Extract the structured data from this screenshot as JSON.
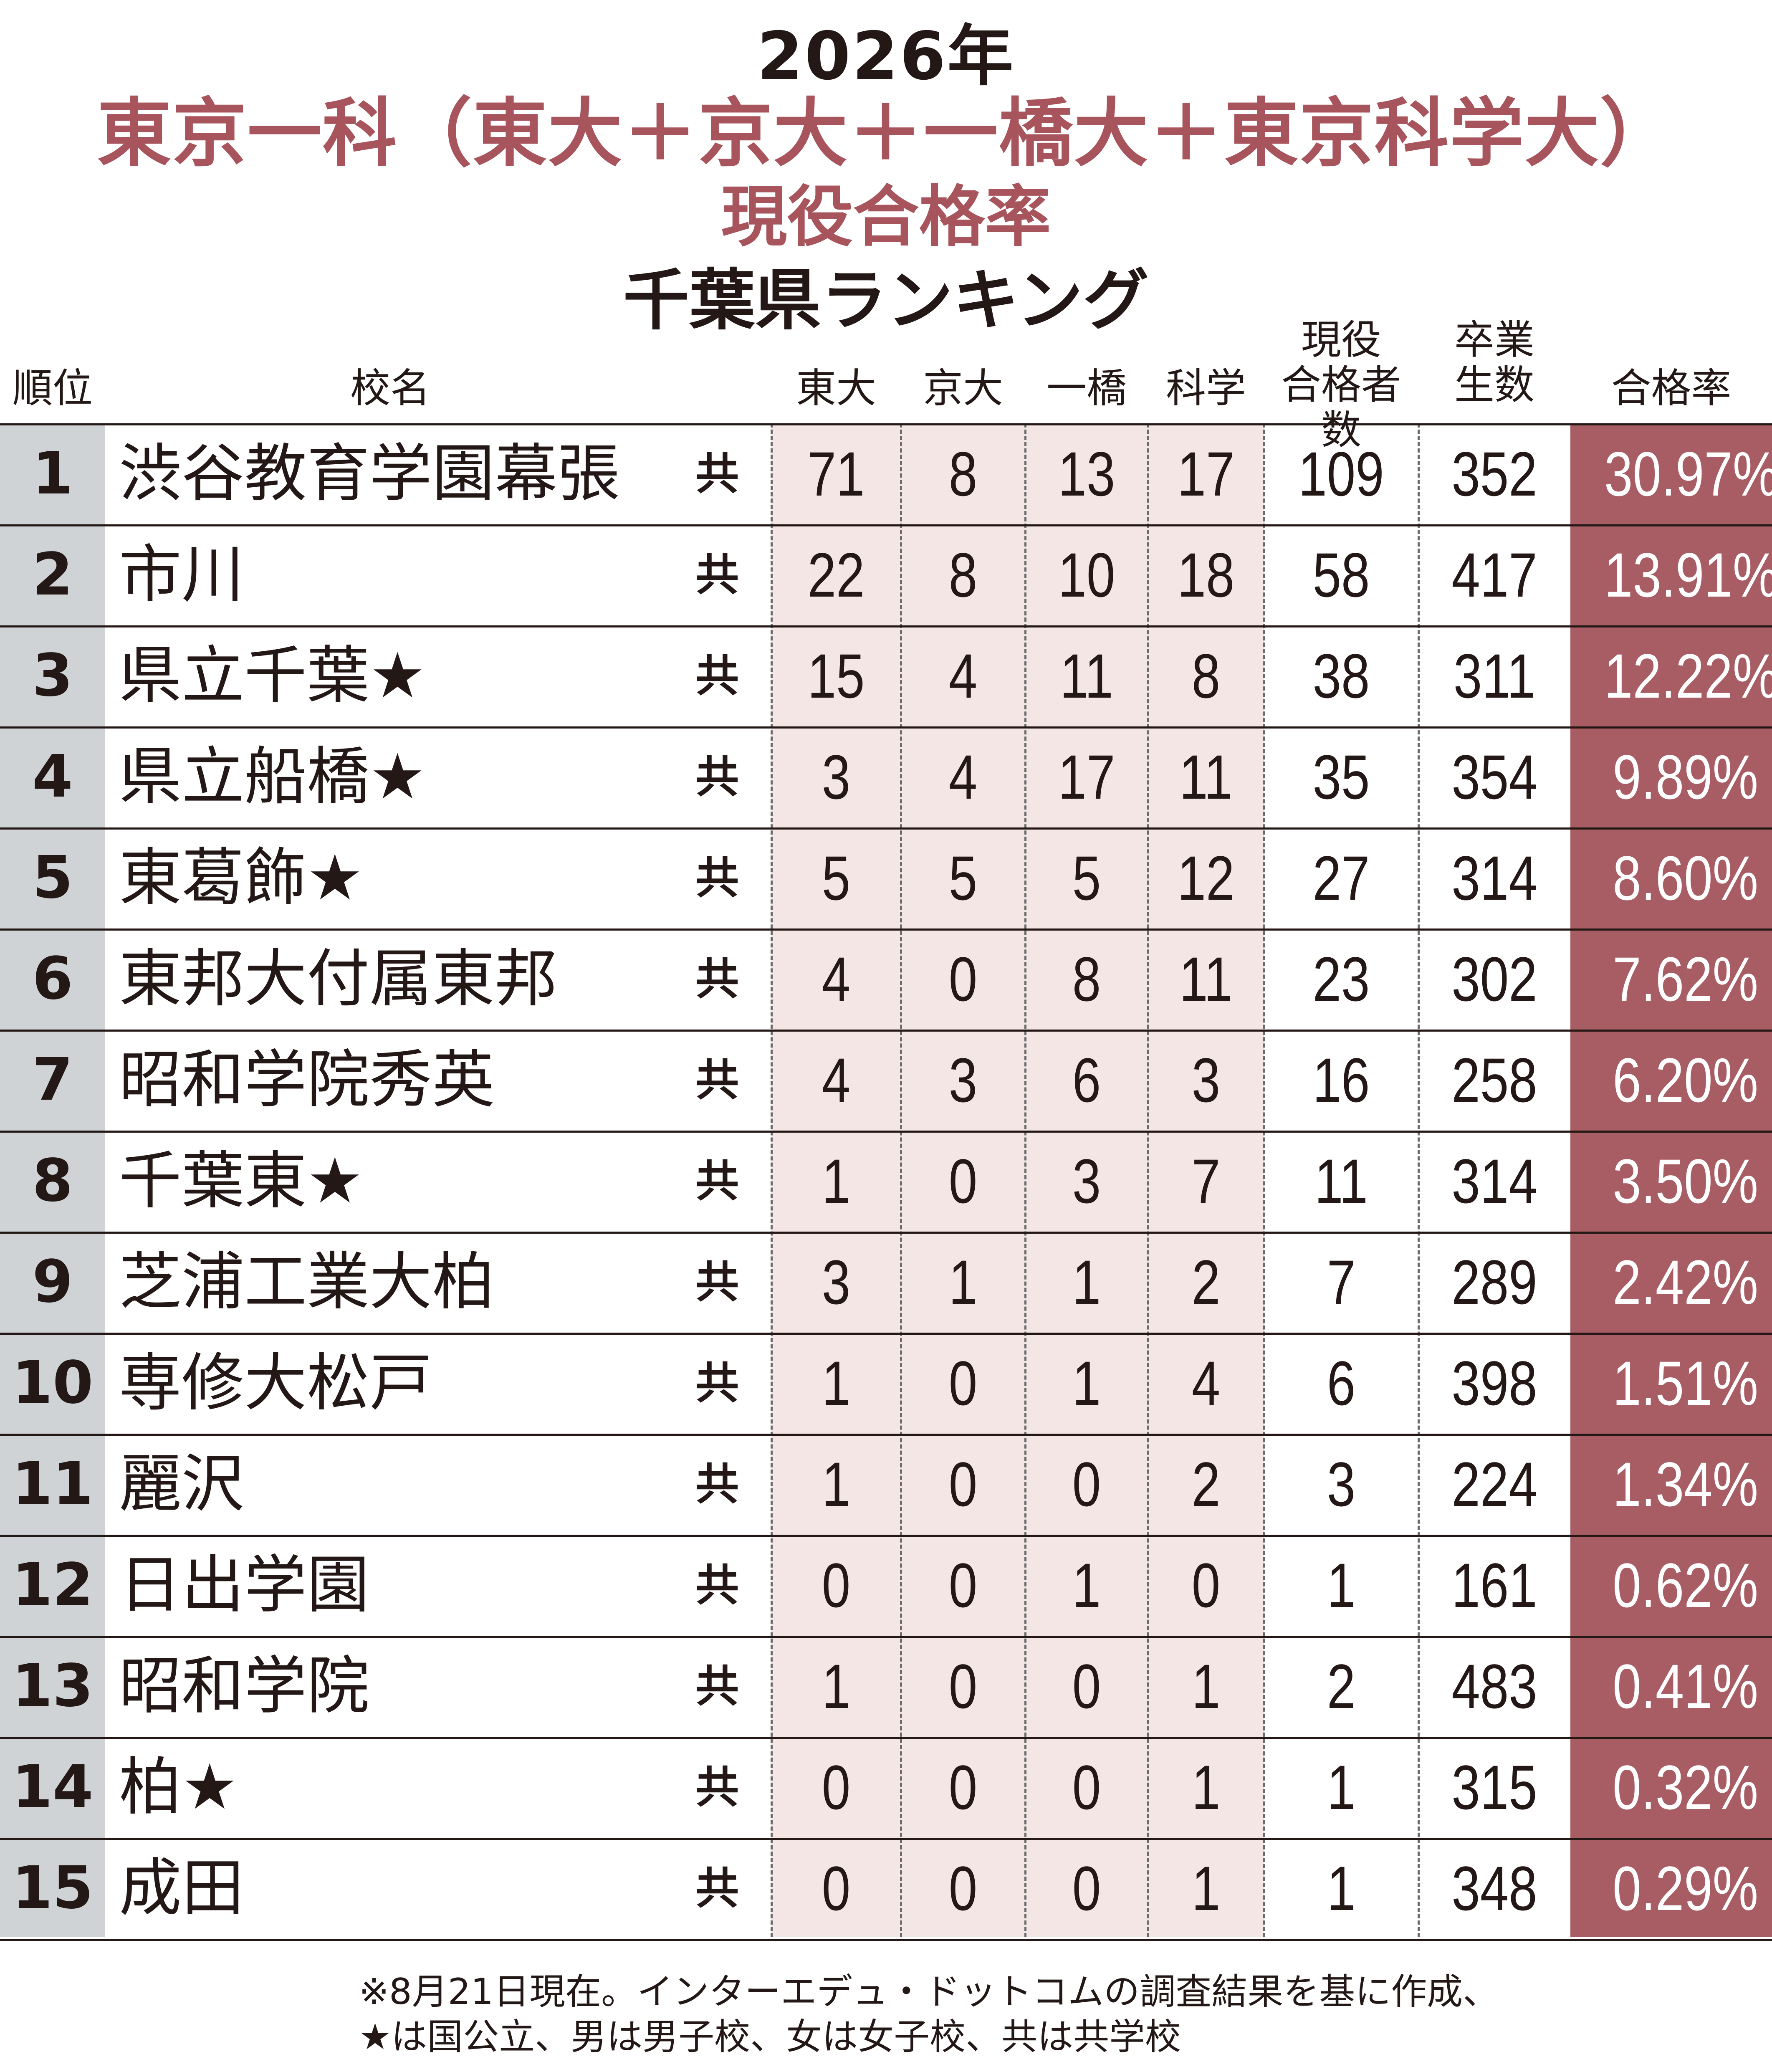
{
  "title": {
    "year": "2026年",
    "main": "東京一科（東大＋京大＋一橋大＋東京科学大）",
    "sub": "現役合格率",
    "pref": "千葉県ランキング"
  },
  "headers": {
    "rank": "順位",
    "name": "校名",
    "todai": "東大",
    "kyodai": "京大",
    "hitotsubashi": "一橋",
    "kagaku": "科学",
    "passers": "現役\n合格者数",
    "graduates": "卒業\n生数",
    "rate": "合格率"
  },
  "rows": [
    {
      "rank": "1",
      "name": "渋谷教育学園幕張",
      "type": "共",
      "todai": "71",
      "kyodai": "8",
      "hitotsubashi": "13",
      "kagaku": "17",
      "passers": "109",
      "graduates": "352",
      "rate": "30.97%"
    },
    {
      "rank": "2",
      "name": "市川",
      "type": "共",
      "todai": "22",
      "kyodai": "8",
      "hitotsubashi": "10",
      "kagaku": "18",
      "passers": "58",
      "graduates": "417",
      "rate": "13.91%"
    },
    {
      "rank": "3",
      "name": "県立千葉★",
      "type": "共",
      "todai": "15",
      "kyodai": "4",
      "hitotsubashi": "11",
      "kagaku": "8",
      "passers": "38",
      "graduates": "311",
      "rate": "12.22%"
    },
    {
      "rank": "4",
      "name": "県立船橋★",
      "type": "共",
      "todai": "3",
      "kyodai": "4",
      "hitotsubashi": "17",
      "kagaku": "11",
      "passers": "35",
      "graduates": "354",
      "rate": "9.89%"
    },
    {
      "rank": "5",
      "name": "東葛飾★",
      "type": "共",
      "todai": "5",
      "kyodai": "5",
      "hitotsubashi": "5",
      "kagaku": "12",
      "passers": "27",
      "graduates": "314",
      "rate": "8.60%"
    },
    {
      "rank": "6",
      "name": "東邦大付属東邦",
      "type": "共",
      "todai": "4",
      "kyodai": "0",
      "hitotsubashi": "8",
      "kagaku": "11",
      "passers": "23",
      "graduates": "302",
      "rate": "7.62%"
    },
    {
      "rank": "7",
      "name": "昭和学院秀英",
      "type": "共",
      "todai": "4",
      "kyodai": "3",
      "hitotsubashi": "6",
      "kagaku": "3",
      "passers": "16",
      "graduates": "258",
      "rate": "6.20%"
    },
    {
      "rank": "8",
      "name": "千葉東★",
      "type": "共",
      "todai": "1",
      "kyodai": "0",
      "hitotsubashi": "3",
      "kagaku": "7",
      "passers": "11",
      "graduates": "314",
      "rate": "3.50%"
    },
    {
      "rank": "9",
      "name": "芝浦工業大柏",
      "type": "共",
      "todai": "3",
      "kyodai": "1",
      "hitotsubashi": "1",
      "kagaku": "2",
      "passers": "7",
      "graduates": "289",
      "rate": "2.42%"
    },
    {
      "rank": "10",
      "name": "専修大松戸",
      "type": "共",
      "todai": "1",
      "kyodai": "0",
      "hitotsubashi": "1",
      "kagaku": "4",
      "passers": "6",
      "graduates": "398",
      "rate": "1.51%"
    },
    {
      "rank": "11",
      "name": "麗沢",
      "type": "共",
      "todai": "1",
      "kyodai": "0",
      "hitotsubashi": "0",
      "kagaku": "2",
      "passers": "3",
      "graduates": "224",
      "rate": "1.34%"
    },
    {
      "rank": "12",
      "name": "日出学園",
      "type": "共",
      "todai": "0",
      "kyodai": "0",
      "hitotsubashi": "1",
      "kagaku": "0",
      "passers": "1",
      "graduates": "161",
      "rate": "0.62%"
    },
    {
      "rank": "13",
      "name": "昭和学院",
      "type": "共",
      "todai": "1",
      "kyodai": "0",
      "hitotsubashi": "0",
      "kagaku": "1",
      "passers": "2",
      "graduates": "483",
      "rate": "0.41%"
    },
    {
      "rank": "14",
      "name": "柏★",
      "type": "共",
      "todai": "0",
      "kyodai": "0",
      "hitotsubashi": "0",
      "kagaku": "1",
      "passers": "1",
      "graduates": "315",
      "rate": "0.32%"
    },
    {
      "rank": "15",
      "name": "成田",
      "type": "共",
      "todai": "0",
      "kyodai": "0",
      "hitotsubashi": "0",
      "kagaku": "1",
      "passers": "1",
      "graduates": "348",
      "rate": "0.29%"
    }
  ],
  "footnote": {
    "line1": "※8月21日現在。インターエデュ・ドットコムの調査結果を基に作成、",
    "line2": "★は国公立、男は男子校、女は女子校、共は共学校"
  },
  "colors": {
    "title_accent": "#a8545c",
    "rank_band": "#cfd3d6",
    "university_band": "#f5e6e6",
    "rate_band": "#a75d63"
  }
}
